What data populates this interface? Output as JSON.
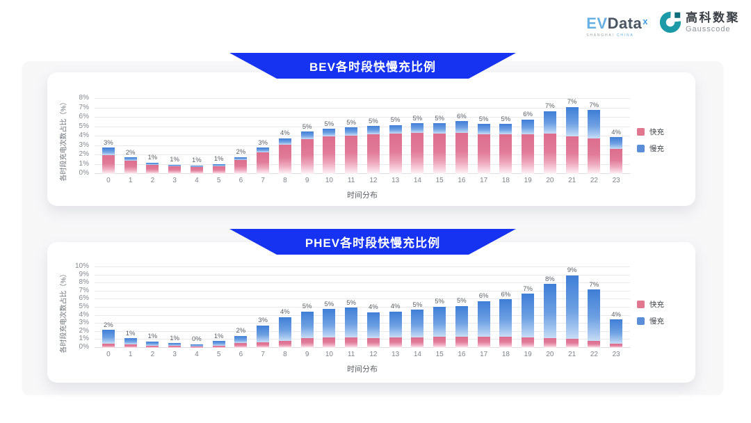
{
  "header": {
    "evdata_logo": {
      "part1": "EV",
      "part2": "Data",
      "superscript": "x",
      "tagline_left": "SHANGHAI",
      "tagline_right": "CHINA"
    },
    "gausscode_logo": {
      "cn_name": "高科数聚",
      "en_name": "Gausscode"
    }
  },
  "colors": {
    "banner_blue": "#1533f1",
    "fast_pink": "#e0768f",
    "slow_blue": "#5b8ed8",
    "panel_gray": "#f7f7f8"
  },
  "chart_data": [
    {
      "type": "bar",
      "stacked": true,
      "title": "BEV各时段快慢充比例",
      "xlabel": "时间分布",
      "ylabel": "各时段充电次数占比（%）",
      "categories": [
        "0",
        "1",
        "2",
        "3",
        "4",
        "5",
        "6",
        "7",
        "8",
        "9",
        "10",
        "11",
        "12",
        "13",
        "14",
        "15",
        "16",
        "17",
        "18",
        "19",
        "20",
        "21",
        "22",
        "23"
      ],
      "ylim": [
        0,
        8
      ],
      "ytick_step": 1,
      "ytick_suffix": "%",
      "grid": true,
      "legend_position": "right",
      "bar_total_labels": [
        "3%",
        "2%",
        "1%",
        "1%",
        "1%",
        "1%",
        "2%",
        "3%",
        "4%",
        "5%",
        "5%",
        "5%",
        "5%",
        "5%",
        "5%",
        "5%",
        "6%",
        "5%",
        "5%",
        "6%",
        "7%",
        "7%",
        "7%",
        "4%"
      ],
      "series": [
        {
          "name": "快充",
          "color": "#e0768f",
          "values": [
            2.0,
            1.4,
            0.95,
            0.8,
            0.75,
            0.85,
            1.5,
            2.3,
            3.1,
            3.7,
            4.0,
            4.1,
            4.2,
            4.3,
            4.4,
            4.3,
            4.4,
            4.2,
            4.2,
            4.2,
            4.3,
            4.1,
            3.8,
            2.7
          ]
        },
        {
          "name": "慢充",
          "color": "#5b8ed8",
          "values": [
            0.8,
            0.35,
            0.25,
            0.2,
            0.15,
            0.2,
            0.3,
            0.5,
            0.7,
            0.8,
            0.8,
            0.85,
            0.9,
            0.9,
            1.0,
            1.1,
            1.2,
            1.1,
            1.1,
            1.6,
            2.4,
            3.2,
            3.0,
            1.2
          ]
        }
      ]
    },
    {
      "type": "bar",
      "stacked": true,
      "title": "PHEV各时段快慢充比例",
      "xlabel": "时间分布",
      "ylabel": "各时段充电次数占比（%）",
      "categories": [
        "0",
        "1",
        "2",
        "3",
        "4",
        "5",
        "6",
        "7",
        "8",
        "9",
        "10",
        "11",
        "12",
        "13",
        "14",
        "15",
        "16",
        "17",
        "18",
        "19",
        "20",
        "21",
        "22",
        "23"
      ],
      "ylim": [
        0,
        10
      ],
      "ytick_step": 1,
      "ytick_suffix": "%",
      "grid": true,
      "legend_position": "right",
      "bar_total_labels": [
        "2%",
        "1%",
        "1%",
        "1%",
        "0%",
        "1%",
        "2%",
        "3%",
        "4%",
        "5%",
        "5%",
        "5%",
        "4%",
        "4%",
        "5%",
        "5%",
        "5%",
        "6%",
        "6%",
        "7%",
        "8%",
        "9%",
        "7%",
        "4%"
      ],
      "series": [
        {
          "name": "快充",
          "color": "#e0768f",
          "values": [
            0.5,
            0.4,
            0.3,
            0.25,
            0.2,
            0.3,
            0.6,
            0.7,
            0.9,
            1.2,
            1.3,
            1.3,
            1.2,
            1.3,
            1.3,
            1.4,
            1.4,
            1.4,
            1.4,
            1.3,
            1.2,
            1.1,
            0.9,
            0.5
          ]
        },
        {
          "name": "慢充",
          "color": "#5b8ed8",
          "values": [
            1.7,
            0.8,
            0.5,
            0.35,
            0.25,
            0.55,
            0.9,
            2.1,
            2.9,
            3.3,
            3.5,
            3.7,
            3.2,
            3.2,
            3.4,
            3.7,
            3.8,
            4.4,
            4.6,
            5.4,
            6.7,
            7.9,
            6.3,
            3.0
          ]
        }
      ]
    }
  ]
}
